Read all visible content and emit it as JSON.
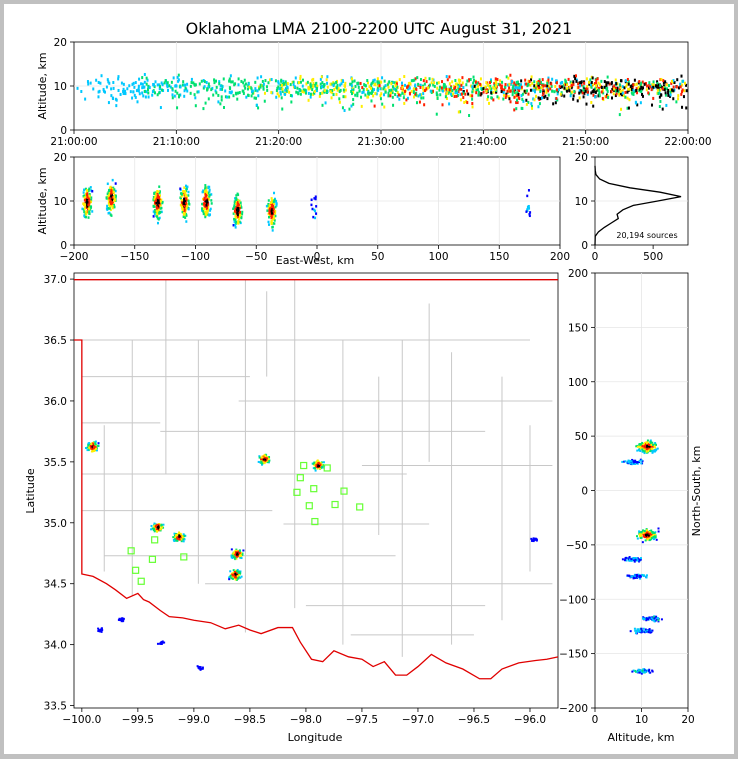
{
  "title": "Oklahoma LMA 2100-2200 UTC August 31, 2021",
  "colors": {
    "border_red": "#e00000",
    "county_gray": "#c8c8c8",
    "station_green": "#66ff33",
    "density_ramp": [
      "#0000ff",
      "#00c8ff",
      "#00e070",
      "#ffee00",
      "#ff2000",
      "#000000"
    ]
  },
  "chart_data": [
    {
      "id": "time-height",
      "type": "scatter",
      "xlabel": "",
      "ylabel": "Altitude, km",
      "xlim": [
        "21:00:00",
        "22:00:00"
      ],
      "ylim": [
        0,
        20
      ],
      "xticks": [
        "21:00:00",
        "21:10:00",
        "21:20:00",
        "21:30:00",
        "21:40:00",
        "21:50:00",
        "22:00:00"
      ],
      "yticks": [
        "0",
        "10",
        "20"
      ],
      "grid": true
    },
    {
      "id": "ew-altitude",
      "type": "scatter",
      "xlabel": "East-West, km",
      "ylabel": "Altitude, km",
      "xlim": [
        -200,
        200
      ],
      "ylim": [
        0,
        20
      ],
      "xticks": [
        "−200",
        "−150",
        "−100",
        "−50",
        "0",
        "50",
        "100",
        "150",
        "200"
      ],
      "yticks": [
        "0",
        "10",
        "20"
      ],
      "grid": true,
      "clusters": [
        {
          "x": -190,
          "y": 10
        },
        {
          "x": -170,
          "y": 11
        },
        {
          "x": -132,
          "y": 10
        },
        {
          "x": -110,
          "y": 10
        },
        {
          "x": -92,
          "y": 10
        },
        {
          "x": -66,
          "y": 8
        },
        {
          "x": -38,
          "y": 8
        },
        {
          "x": -3,
          "y": 8
        },
        {
          "x": 173,
          "y": 8.5
        }
      ]
    },
    {
      "id": "altitude-histogram",
      "type": "line",
      "xlabel": "",
      "ylabel": "",
      "xlim": [
        0,
        800
      ],
      "ylim": [
        0,
        20
      ],
      "xticks": [
        "0",
        "500"
      ],
      "yticks": [
        "0",
        "10",
        "20"
      ],
      "annotation": "20,194 sources",
      "points": [
        {
          "x": 0,
          "y": 0
        },
        {
          "x": 2,
          "y": 2
        },
        {
          "x": 30,
          "y": 3
        },
        {
          "x": 80,
          "y": 4
        },
        {
          "x": 140,
          "y": 5
        },
        {
          "x": 200,
          "y": 6
        },
        {
          "x": 190,
          "y": 7
        },
        {
          "x": 240,
          "y": 8
        },
        {
          "x": 330,
          "y": 9
        },
        {
          "x": 540,
          "y": 10
        },
        {
          "x": 740,
          "y": 11
        },
        {
          "x": 560,
          "y": 12
        },
        {
          "x": 300,
          "y": 13
        },
        {
          "x": 120,
          "y": 14
        },
        {
          "x": 40,
          "y": 15
        },
        {
          "x": 8,
          "y": 16
        },
        {
          "x": 2,
          "y": 17
        },
        {
          "x": 0,
          "y": 18
        }
      ]
    },
    {
      "id": "plan-view",
      "type": "scatter",
      "xlabel": "Longitude",
      "ylabel": "Latitude",
      "xlim": [
        -100.07,
        -95.75
      ],
      "ylim": [
        33.48,
        37.05
      ],
      "xticks": [
        "−100.0",
        "−99.5",
        "−99.0",
        "−98.5",
        "−98.0",
        "−97.5",
        "−97.0",
        "−96.5",
        "−96.0"
      ],
      "yticks": [
        "33.5",
        "34.0",
        "34.5",
        "35.0",
        "35.5",
        "36.0",
        "36.5",
        "37.0"
      ],
      "stations": [
        {
          "x": -98.02,
          "y": 35.47
        },
        {
          "x": -97.81,
          "y": 35.45
        },
        {
          "x": -98.05,
          "y": 35.37
        },
        {
          "x": -97.93,
          "y": 35.28
        },
        {
          "x": -98.08,
          "y": 35.25
        },
        {
          "x": -97.66,
          "y": 35.26
        },
        {
          "x": -97.97,
          "y": 35.14
        },
        {
          "x": -97.74,
          "y": 35.15
        },
        {
          "x": -97.52,
          "y": 35.13
        },
        {
          "x": -97.92,
          "y": 35.01
        },
        {
          "x": -99.35,
          "y": 34.86
        },
        {
          "x": -99.56,
          "y": 34.77
        },
        {
          "x": -99.37,
          "y": 34.7
        },
        {
          "x": -99.09,
          "y": 34.72
        },
        {
          "x": -99.52,
          "y": 34.61
        },
        {
          "x": -99.47,
          "y": 34.52
        }
      ],
      "clusters": [
        {
          "x": -99.91,
          "y": 35.63
        },
        {
          "x": -99.33,
          "y": 34.97
        },
        {
          "x": -99.14,
          "y": 34.89
        },
        {
          "x": -98.62,
          "y": 34.75
        },
        {
          "x": -98.64,
          "y": 34.58
        },
        {
          "x": -98.38,
          "y": 35.53
        },
        {
          "x": -97.9,
          "y": 35.48
        },
        {
          "x": -99.84,
          "y": 34.13
        },
        {
          "x": -99.65,
          "y": 34.21
        },
        {
          "x": -99.3,
          "y": 34.02
        },
        {
          "x": -98.95,
          "y": 33.81
        },
        {
          "x": -95.97,
          "y": 34.87
        }
      ]
    },
    {
      "id": "ns-altitude",
      "type": "scatter",
      "xlabel": "Altitude, km",
      "ylabel": "North-South, km",
      "xlim": [
        0,
        20
      ],
      "ylim": [
        -200,
        200
      ],
      "xticks": [
        "0",
        "10",
        "20"
      ],
      "yticks": [
        "−200",
        "−150",
        "−100",
        "−50",
        "0",
        "50",
        "100",
        "150",
        "200"
      ],
      "grid": true,
      "clusters": [
        {
          "x": 11,
          "y": 41
        },
        {
          "x": 8,
          "y": 27
        },
        {
          "x": 11,
          "y": -40
        },
        {
          "x": 8,
          "y": -62
        },
        {
          "x": 9,
          "y": -78
        },
        {
          "x": 12,
          "y": -117
        },
        {
          "x": 10,
          "y": -128
        },
        {
          "x": 10,
          "y": -165
        }
      ]
    }
  ]
}
